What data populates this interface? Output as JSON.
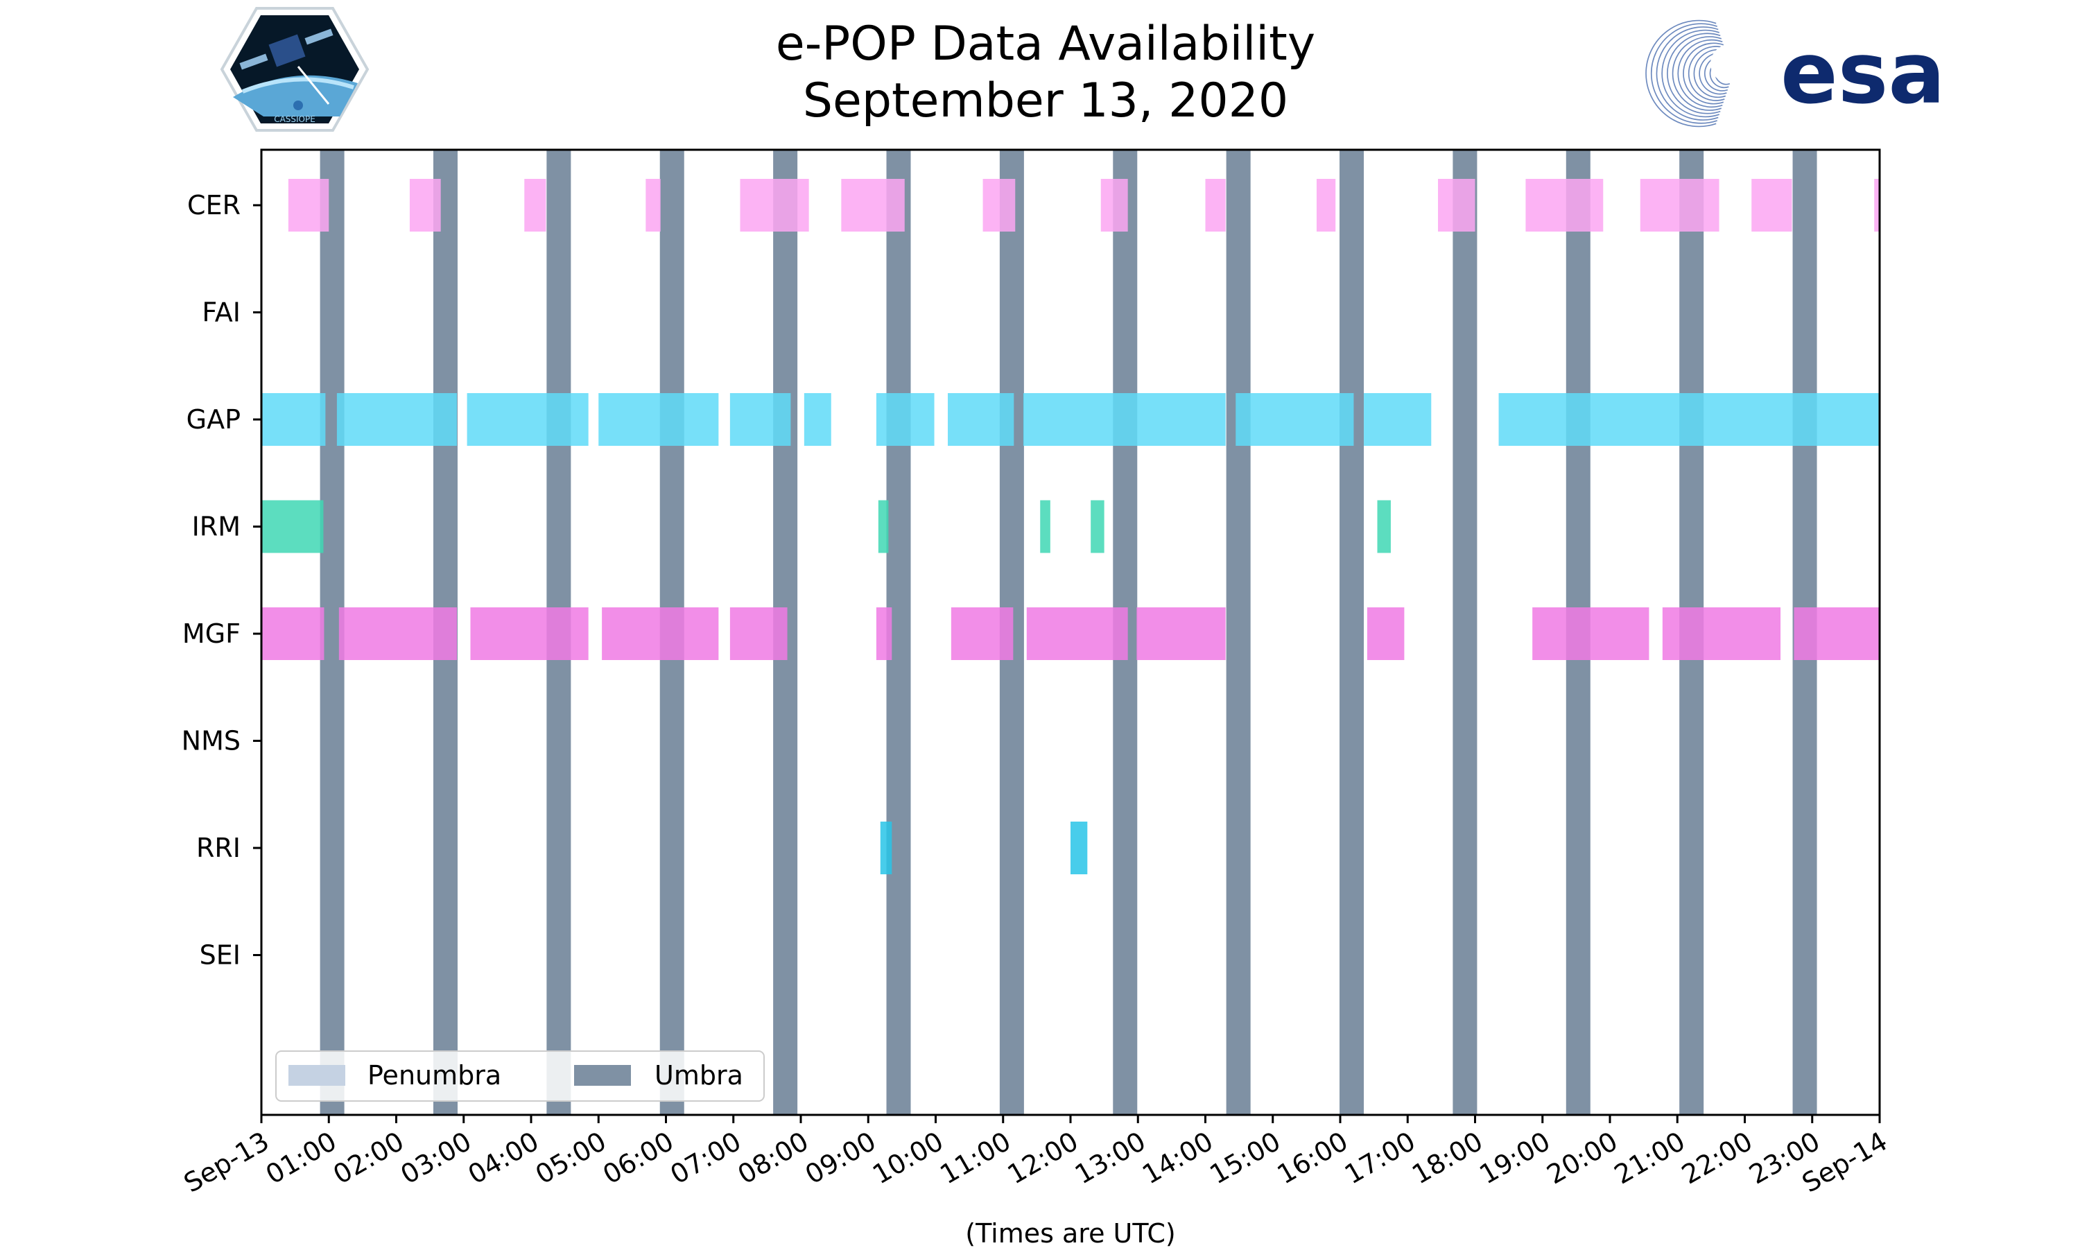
{
  "chart_data": {
    "type": "timeline",
    "title": [
      "e-POP Data Availability",
      "September 13, 2020"
    ],
    "xlabel": "(Times are UTC)",
    "xlim_hours": [
      0,
      24
    ],
    "x_tick_labels": [
      "Sep-13",
      "01:00",
      "02:00",
      "03:00",
      "04:00",
      "05:00",
      "06:00",
      "07:00",
      "08:00",
      "09:00",
      "10:00",
      "11:00",
      "12:00",
      "13:00",
      "14:00",
      "15:00",
      "16:00",
      "17:00",
      "18:00",
      "19:00",
      "20:00",
      "21:00",
      "22:00",
      "23:00",
      "Sep-14"
    ],
    "categories": [
      "CER",
      "FAI",
      "GAP",
      "IRM",
      "MGF",
      "NMS",
      "RRI",
      "SEI"
    ],
    "legend": {
      "position": "lower-left",
      "entries": [
        {
          "label": "Penumbra",
          "color": "#c5d2e3"
        },
        {
          "label": "Umbra",
          "color": "#7f91a4"
        }
      ]
    },
    "umbra_intervals": [
      [
        0.87,
        1.23
      ],
      [
        2.55,
        2.91
      ],
      [
        4.23,
        4.59
      ],
      [
        5.91,
        6.27
      ],
      [
        7.59,
        7.95
      ],
      [
        9.27,
        9.63
      ],
      [
        10.95,
        11.31
      ],
      [
        12.63,
        12.99
      ],
      [
        14.31,
        14.67
      ],
      [
        15.99,
        16.35
      ],
      [
        17.67,
        18.03
      ],
      [
        19.35,
        19.71
      ],
      [
        21.03,
        21.39
      ],
      [
        22.71,
        23.07
      ]
    ],
    "series": [
      {
        "name": "CER",
        "color": "#fba6f2",
        "intervals": [
          [
            0.4,
            1.0
          ],
          [
            2.2,
            2.66
          ],
          [
            3.9,
            4.22
          ],
          [
            5.7,
            5.92
          ],
          [
            7.1,
            8.12
          ],
          [
            8.6,
            9.54
          ],
          [
            10.7,
            11.18
          ],
          [
            12.45,
            12.85
          ],
          [
            14.0,
            14.3
          ],
          [
            15.65,
            15.93
          ],
          [
            17.45,
            18.0
          ],
          [
            18.75,
            19.9
          ],
          [
            20.45,
            21.62
          ],
          [
            22.1,
            22.7
          ],
          [
            23.92,
            24.0
          ]
        ]
      },
      {
        "name": "FAI",
        "color": "#fba6f2",
        "intervals": []
      },
      {
        "name": "GAP",
        "color": "#5fdaf8",
        "intervals": [
          [
            0.0,
            0.95
          ],
          [
            1.12,
            2.9
          ],
          [
            3.05,
            4.85
          ],
          [
            5.0,
            6.78
          ],
          [
            6.95,
            7.85
          ],
          [
            8.05,
            8.45
          ],
          [
            9.12,
            9.98
          ],
          [
            10.18,
            11.16
          ],
          [
            11.3,
            14.3
          ],
          [
            14.45,
            16.2
          ],
          [
            16.35,
            17.35
          ],
          [
            18.35,
            24.0
          ]
        ]
      },
      {
        "name": "IRM",
        "color": "#3fd7b4",
        "intervals": [
          [
            0.0,
            0.92
          ],
          [
            9.15,
            9.3
          ],
          [
            11.55,
            11.7
          ],
          [
            12.3,
            12.5
          ],
          [
            16.55,
            16.75
          ]
        ]
      },
      {
        "name": "MGF",
        "color": "#f07ae4",
        "intervals": [
          [
            0.0,
            0.93
          ],
          [
            1.15,
            2.9
          ],
          [
            3.1,
            4.85
          ],
          [
            5.05,
            6.78
          ],
          [
            6.95,
            7.8
          ],
          [
            9.12,
            9.35
          ],
          [
            10.23,
            11.15
          ],
          [
            11.35,
            12.85
          ],
          [
            12.98,
            14.3
          ],
          [
            16.4,
            16.95
          ],
          [
            18.85,
            20.58
          ],
          [
            20.78,
            22.53
          ],
          [
            22.73,
            24.0
          ]
        ]
      },
      {
        "name": "NMS",
        "color": "#f07ae4",
        "intervals": []
      },
      {
        "name": "RRI",
        "color": "#28c4e8",
        "intervals": [
          [
            9.18,
            9.35
          ],
          [
            12.0,
            12.25
          ]
        ]
      },
      {
        "name": "SEI",
        "color": "#28c4e8",
        "intervals": []
      }
    ]
  },
  "logos": {
    "left": {
      "text": "CASSIOPE",
      "icon": "cassiope-mission-patch-icon"
    },
    "right": {
      "text": "esa",
      "icon": "esa-logo-icon",
      "color": "#0e2a6e"
    }
  }
}
